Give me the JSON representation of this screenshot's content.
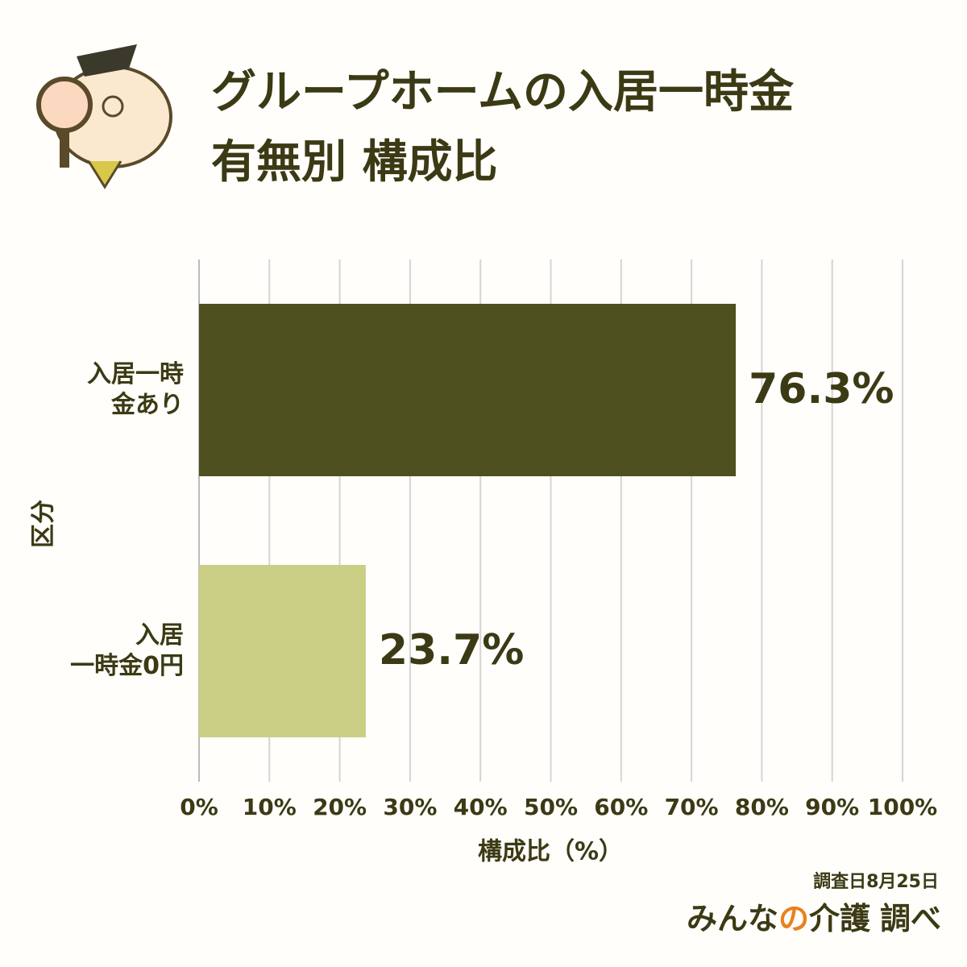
{
  "chart_data": {
    "type": "hbar",
    "title": [
      "グループホームの入居一時金",
      "有無別 構成比"
    ],
    "categories": [
      "入居一時\n金あり",
      "入居\n一時金0円"
    ],
    "values": [
      76.3,
      23.7
    ],
    "value_labels": [
      "76.3%",
      "23.7%"
    ],
    "colors": [
      "#4f5020",
      "#cbcf85"
    ],
    "xlim": [
      0,
      100
    ],
    "xticks": [
      {
        "value": 0,
        "label": "0%"
      },
      {
        "value": 10,
        "label": "10%"
      },
      {
        "value": 20,
        "label": "20%"
      },
      {
        "value": 30,
        "label": "30%"
      },
      {
        "value": 40,
        "label": "40%"
      },
      {
        "value": 50,
        "label": "50%"
      },
      {
        "value": 60,
        "label": "60%"
      },
      {
        "value": 70,
        "label": "70%"
      },
      {
        "value": 80,
        "label": "80%"
      },
      {
        "value": 90,
        "label": "90%"
      },
      {
        "value": 100,
        "label": "100%"
      }
    ],
    "grid": true,
    "x_label": "構成比（%）",
    "y_label": "区分",
    "footnote": "調査日8月25日",
    "source": [
      "みんな",
      "の",
      "介護",
      "調べ"
    ]
  }
}
